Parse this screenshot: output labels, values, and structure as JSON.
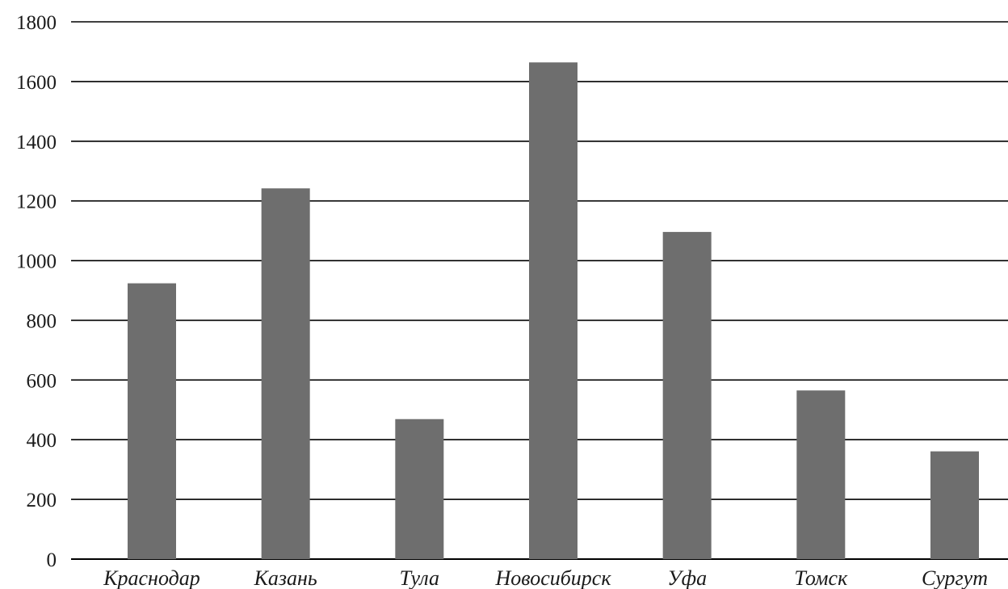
{
  "chart_data": {
    "type": "bar",
    "categories": [
      "Краснодар",
      "Казань",
      "Тула",
      "Новосибирск",
      "Уфа",
      "Томск",
      "Сургут"
    ],
    "values": [
      924,
      1242,
      469,
      1664,
      1096,
      565,
      361
    ],
    "yticks": [
      0,
      200,
      400,
      600,
      800,
      1000,
      1200,
      1400,
      1600,
      1800
    ],
    "ylim": [
      0,
      1800
    ],
    "title": "",
    "xlabel": "",
    "ylabel": "",
    "grid": true,
    "legend": "none",
    "bar_color": "#6e6e6e",
    "grid_color": "#000000"
  }
}
